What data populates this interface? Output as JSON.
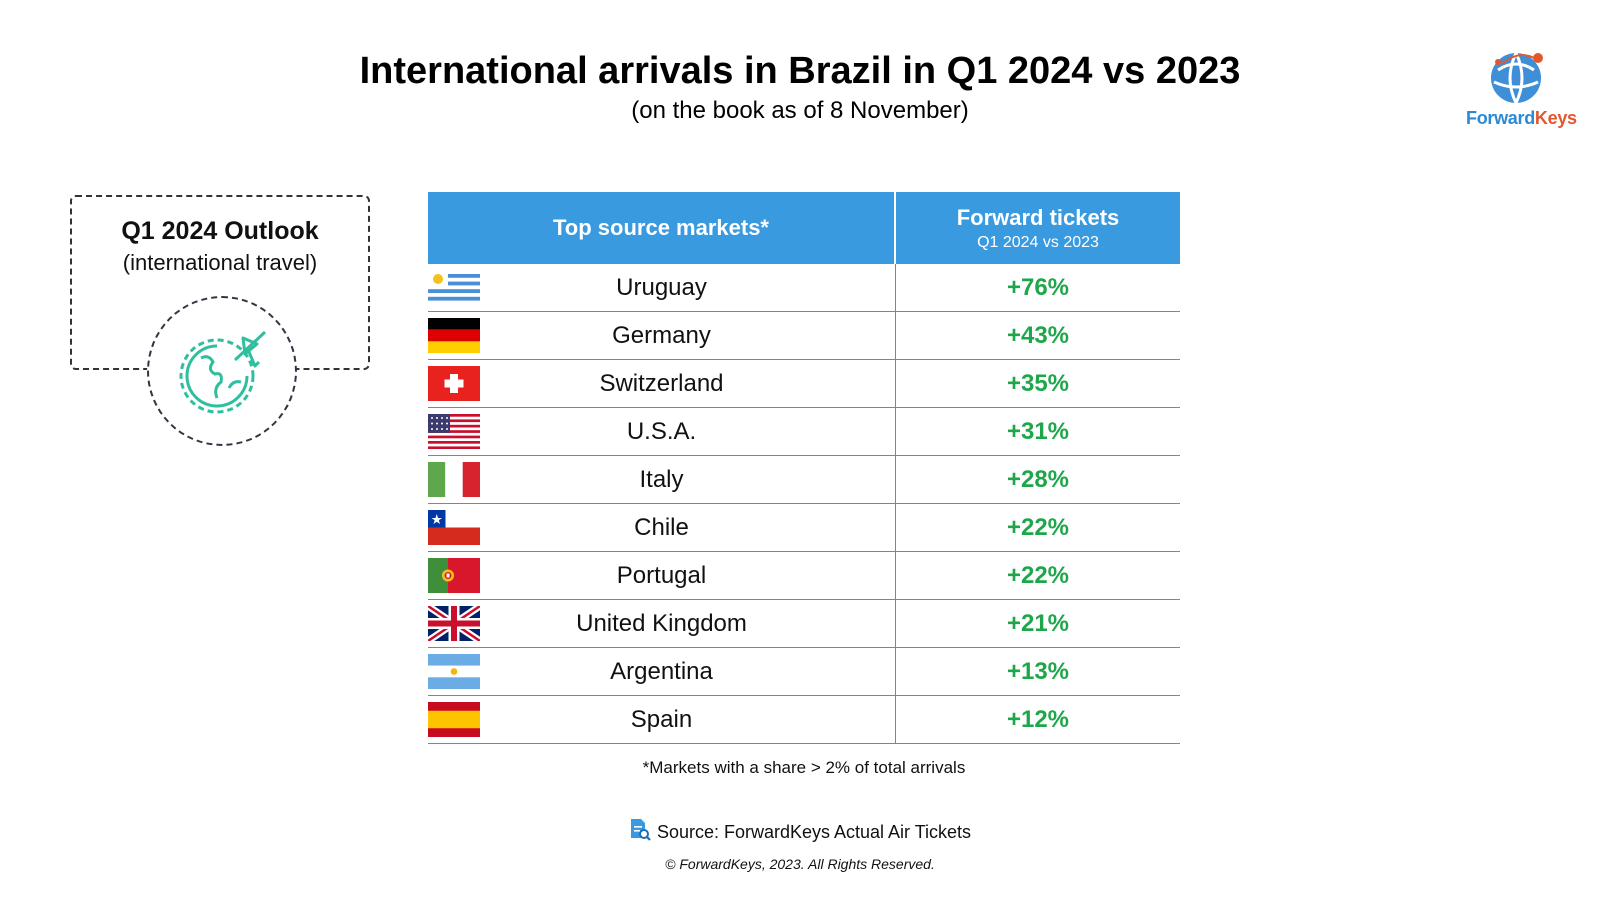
{
  "header": {
    "title": "International arrivals in Brazil in Q1 2024 vs 2023",
    "subtitle": "(on the book as of 8 November)"
  },
  "logo": {
    "part1": "Forward",
    "part2": "Keys",
    "colors": {
      "blue": "#2b8ad6",
      "orange": "#e4572e"
    }
  },
  "outlook": {
    "title": "Q1 2024 Outlook",
    "subtitle": "(international travel)",
    "icon": "globe-airplane-icon"
  },
  "table": {
    "col1_header": "Top source markets*",
    "col2_header": "Forward tickets",
    "col2_subheader": "Q1 2024 vs 2023",
    "header_color": "#3a9ae0",
    "value_color": "#1ea74a",
    "rows": [
      {
        "country": "Uruguay",
        "value": "+76%",
        "flag": "uruguay-flag-icon"
      },
      {
        "country": "Germany",
        "value": "+43%",
        "flag": "germany-flag-icon"
      },
      {
        "country": "Switzerland",
        "value": "+35%",
        "flag": "switzerland-flag-icon"
      },
      {
        "country": "U.S.A.",
        "value": "+31%",
        "flag": "usa-flag-icon"
      },
      {
        "country": "Italy",
        "value": "+28%",
        "flag": "italy-flag-icon"
      },
      {
        "country": "Chile",
        "value": "+22%",
        "flag": "chile-flag-icon"
      },
      {
        "country": "Portugal",
        "value": "+22%",
        "flag": "portugal-flag-icon"
      },
      {
        "country": "United Kingdom",
        "value": "+21%",
        "flag": "uk-flag-icon"
      },
      {
        "country": "Argentina",
        "value": "+13%",
        "flag": "argentina-flag-icon"
      },
      {
        "country": "Spain",
        "value": "+12%",
        "flag": "spain-flag-icon"
      }
    ]
  },
  "footnote": "*Markets with a share > 2% of total arrivals",
  "source": "Source: ForwardKeys Actual Air Tickets",
  "copyright": "© ForwardKeys, 2023. All Rights Reserved."
}
